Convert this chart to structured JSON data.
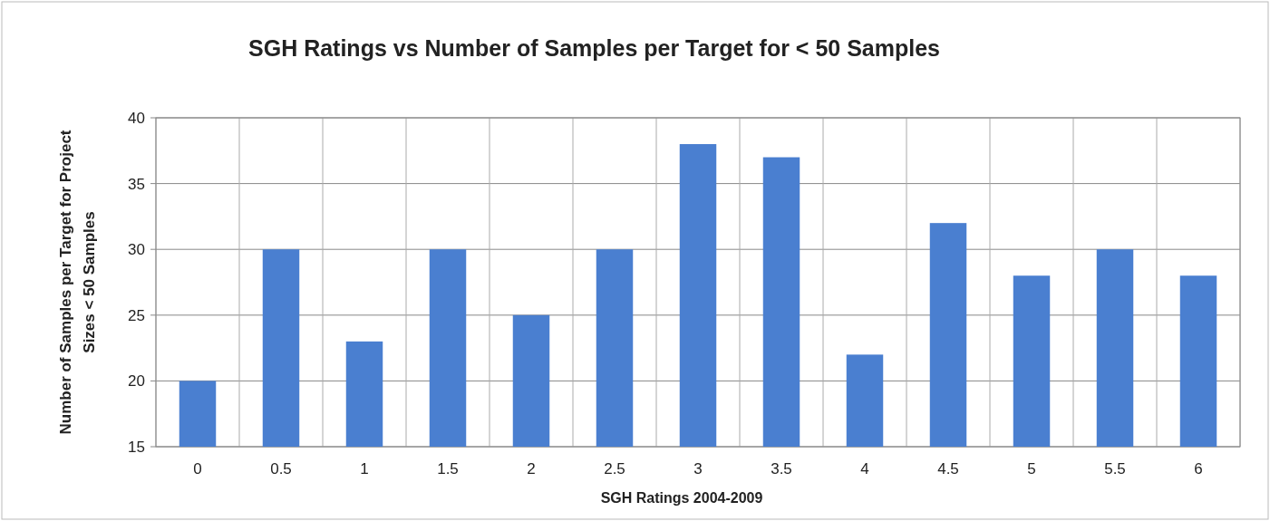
{
  "chart_data": {
    "type": "bar",
    "title": "SGH Ratings vs Number of Samples per Target for < 50 Samples",
    "xlabel": "SGH Ratings 2004-2009",
    "ylabel": "Number of Samples per Target for Project\nSizes < 50 Samples",
    "categories": [
      "0",
      "0.5",
      "1",
      "1.5",
      "2",
      "2.5",
      "3",
      "3.5",
      "4",
      "4.5",
      "5",
      "5.5",
      "6"
    ],
    "values": [
      20,
      30,
      23,
      30,
      25,
      30,
      38,
      37,
      22,
      32,
      28,
      30,
      28
    ],
    "color": "#4a7fd0",
    "ylim": [
      15,
      40
    ],
    "yticks": [
      15,
      20,
      25,
      30,
      35,
      40
    ],
    "grid": true
  }
}
